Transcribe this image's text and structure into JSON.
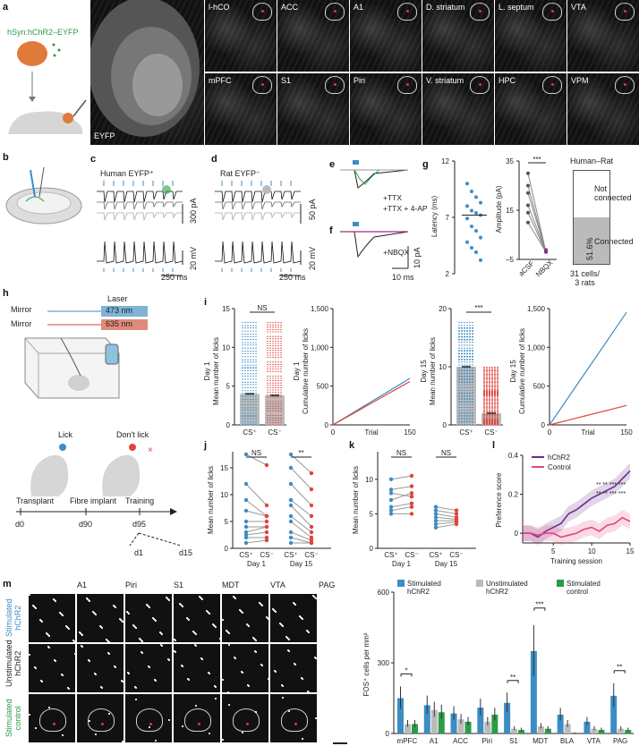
{
  "panel_labels": {
    "a": "a",
    "b": "b",
    "c": "c",
    "d": "d",
    "e": "e",
    "f": "f",
    "g": "g",
    "h": "h",
    "i": "i",
    "j": "j",
    "k": "k",
    "l": "l",
    "m": "m"
  },
  "a": {
    "construct": "hSyn:hChR2–EYFP",
    "big_label": "EYFP",
    "regions": [
      "l-hCO",
      "ACC",
      "A1",
      "D. striatum",
      "L. septum",
      "VTA",
      "mPFC",
      "S1",
      "Piri",
      "V. striatum",
      "HPC",
      "VPM"
    ]
  },
  "c": {
    "title": "Human EYFP⁺",
    "scale_top": "300 pA",
    "scale_bottom": "20 mV",
    "time": "250 ms"
  },
  "d": {
    "title": "Rat EYFP⁻",
    "scale_top": "50 pA",
    "scale_bottom": "20 mV",
    "time": "250 ms"
  },
  "e": {
    "legend": [
      "+TTX",
      "+TTX + 4-AP"
    ]
  },
  "f": {
    "legend": [
      "+NBQX"
    ],
    "scale_y": "10 pA",
    "scale_x": "10 ms"
  },
  "g": {
    "latency_label": "Latency (ms)",
    "latency_ticks": [
      "12",
      "7",
      "2"
    ],
    "amp_label": "Amplitude (pA)",
    "amp_ticks": [
      "35",
      "15",
      "–5"
    ],
    "sig": "***",
    "amp_x": [
      "aCSF",
      "NBQX"
    ],
    "bar_title": "Human–Rat",
    "not_connected": "Not\nconnected",
    "connected": "Connected",
    "percent": "51.6%",
    "footer": "31 cells/\n3 rats"
  },
  "h": {
    "laser": "Laser",
    "mirror": "Mirror",
    "wl1": "473 nm",
    "wl2": "635 nm",
    "lick": "Lick",
    "dont_lick": "Don't lick",
    "timeline": [
      "Transplant",
      "Fibre implant",
      "Training"
    ],
    "days": [
      "d0",
      "d90",
      "d95",
      "d1",
      "d15"
    ]
  },
  "i": {
    "day1": "Day 1",
    "day15": "Day 15",
    "ns": "NS",
    "sig": "***",
    "ylabel_mean": "Mean number of licks",
    "ylabel_cum": "Cumulative number of licks",
    "yt1": [
      "15",
      "10",
      "5",
      "0"
    ],
    "yt_cum": [
      "1,500",
      "1,000",
      "500",
      "0"
    ],
    "yt15": [
      "20",
      "10",
      "0"
    ],
    "xcs": [
      "CS⁺",
      "CS⁻"
    ],
    "trial": "Trial",
    "x0": "0",
    "x150": "150"
  },
  "j": {
    "ns": "NS",
    "sig": "**",
    "ylabel": "Mean number of licks",
    "yt": [
      "15",
      "10",
      "5",
      "0"
    ],
    "x": [
      "CS⁺",
      "CS⁻",
      "CS⁺",
      "CS⁻"
    ],
    "days": [
      "Day 1",
      "Day 15"
    ]
  },
  "k": {
    "ns1": "NS",
    "ns2": "NS",
    "ylabel": "Mean number of licks",
    "yt": [
      "10",
      "5",
      "0"
    ],
    "x": [
      "CS⁺",
      "CS⁻",
      "CS⁺",
      "CS⁻"
    ],
    "days": [
      "Day 1",
      "Day 15"
    ]
  },
  "l": {
    "ylabel": "Preference score",
    "xlabel": "Training session",
    "yt": [
      "0.4",
      "0.2",
      "0"
    ],
    "xt": [
      "5",
      "10",
      "15"
    ],
    "legend": [
      "hChR2",
      "Control"
    ],
    "sig_row1": "** ** *** ***",
    "sig_row2": "** ** *** ***",
    "colors": {
      "hchr2": "#6b2d8c",
      "control": "#e6467a"
    }
  },
  "m": {
    "cols": [
      "A1",
      "Piri",
      "S1",
      "MDT",
      "VTA",
      "PAG"
    ],
    "rows": [
      "Stimulated\nhChR2",
      "Unstimulated\nhChR2",
      "Stimulated\ncontrol"
    ],
    "row_colors": [
      "#3c8dc4",
      "#222222",
      "#2a9c48"
    ],
    "legend": [
      "Stimulated\nhChR2",
      "Unstimulated\nhChR2",
      "Stimulated\ncontrol"
    ],
    "ylabel": "FOS⁺ cells per mm²",
    "yt": [
      "600",
      "300",
      "0"
    ],
    "xcats": [
      "mPFC",
      "A1",
      "ACC",
      "Piri",
      "S1",
      "MDT",
      "BLA",
      "VTA",
      "PAG"
    ],
    "sig": [
      "*",
      "**",
      "***",
      "**"
    ]
  },
  "colors": {
    "blue": "#3c8dc4",
    "red": "#e0443a",
    "green": "#2a9c48",
    "purple": "#6b2d8c",
    "pink": "#e6467a",
    "grey": "#bbbbbb"
  },
  "chart_data": [
    {
      "type": "bar",
      "title": "",
      "ylabel": "FOS⁺ cells per mm²",
      "ylim": [
        0,
        600
      ],
      "categories": [
        "mPFC",
        "A1",
        "ACC",
        "Piri",
        "S1",
        "MDT",
        "BLA",
        "VTA",
        "PAG"
      ],
      "series": [
        {
          "name": "Stimulated hChR2",
          "values": [
            150,
            120,
            85,
            110,
            130,
            350,
            80,
            50,
            160
          ]
        },
        {
          "name": "Unstimulated hChR2",
          "values": [
            40,
            100,
            60,
            50,
            20,
            30,
            40,
            20,
            20
          ]
        },
        {
          "name": "Stimulated control",
          "values": [
            40,
            90,
            50,
            80,
            15,
            20,
            0,
            15,
            15
          ]
        }
      ]
    },
    {
      "type": "line",
      "title": "",
      "xlabel": "Training session",
      "ylabel": "Preference score",
      "ylim": [
        -0.05,
        0.4
      ],
      "x": [
        1,
        2,
        3,
        4,
        5,
        6,
        7,
        8,
        9,
        10,
        11,
        12,
        13,
        14,
        15
      ],
      "series": [
        {
          "name": "hChR2",
          "values": [
            0,
            0,
            -0.02,
            0.01,
            0.03,
            0.05,
            0.1,
            0.12,
            0.15,
            0.18,
            0.2,
            0.22,
            0.24,
            0.28,
            0.32
          ]
        },
        {
          "name": "Control",
          "values": [
            0,
            0,
            -0.01,
            0,
            0,
            -0.02,
            -0.01,
            0,
            0.02,
            0.03,
            0.01,
            0.04,
            0.05,
            0.08,
            0.06
          ]
        }
      ]
    }
  ]
}
